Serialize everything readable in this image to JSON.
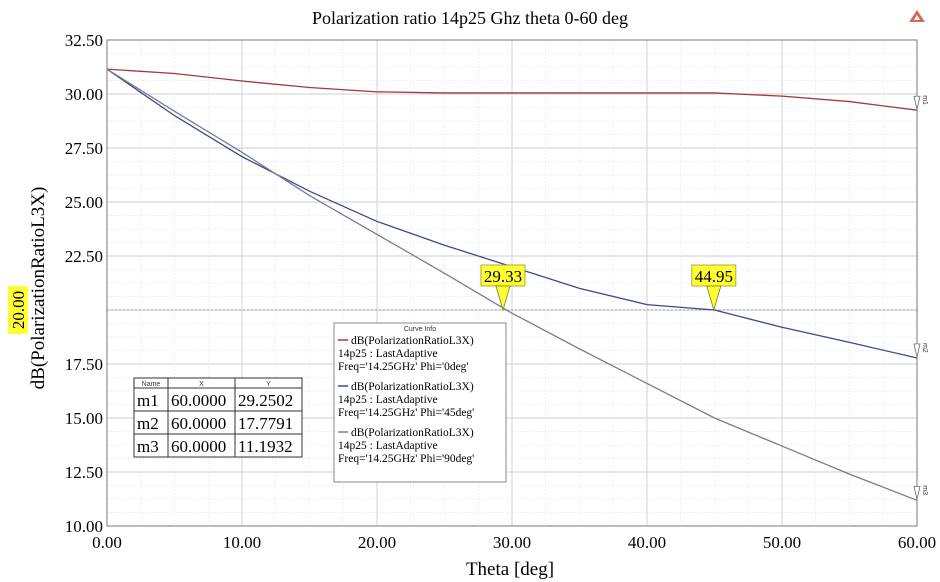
{
  "chart_data": {
    "type": "line",
    "title": "Polarization ratio 14p25 Ghz theta 0-60 deg",
    "xlabel": "Theta [deg]",
    "ylabel": "dB(PolarizationRatioL3X)",
    "xlim": [
      0,
      60
    ],
    "ylim": [
      10,
      32.5
    ],
    "x_ticks": [
      "0.00",
      "10.00",
      "20.00",
      "30.00",
      "40.00",
      "50.00",
      "60.00"
    ],
    "y_ticks": [
      "10.00",
      "12.50",
      "15.00",
      "17.50",
      "20.00",
      "22.50",
      "25.00",
      "27.50",
      "30.00",
      "32.50"
    ],
    "grid": true,
    "colors": {
      "grid": "#cfcfcf",
      "marker_fill": "#ffff33",
      "highlight": "#ffff33"
    },
    "series": [
      {
        "name": "dB(PolarizationRatioL3X)",
        "setup": "14p25 : LastAdaptive",
        "params": "Freq='14.25GHz' Phi='0deg'",
        "color": "#a23a3a",
        "x": [
          0,
          5,
          10,
          15,
          20,
          25,
          30,
          35,
          40,
          45,
          50,
          55,
          60
        ],
        "y": [
          31.15,
          30.95,
          30.6,
          30.3,
          30.1,
          30.05,
          30.05,
          30.05,
          30.05,
          30.05,
          29.9,
          29.65,
          29.25
        ]
      },
      {
        "name": "dB(PolarizationRatioL3X)",
        "setup": "14p25 : LastAdaptive",
        "params": "Freq='14.25GHz' Phi='45deg'",
        "color": "#3c4a8c",
        "x": [
          0,
          5,
          10,
          15,
          20,
          25,
          30,
          35,
          40,
          45,
          50,
          55,
          60
        ],
        "y": [
          31.15,
          29.0,
          27.1,
          25.5,
          24.1,
          23.0,
          22.0,
          21.0,
          20.25,
          20.0,
          19.2,
          18.5,
          17.78
        ]
      },
      {
        "name": "dB(PolarizationRatioL3X)",
        "setup": "14p25 : LastAdaptive",
        "params": "Freq='14.25GHz' Phi='90deg'",
        "color": "#7a7a9a",
        "x": [
          0,
          5,
          10,
          15,
          20,
          25,
          30,
          35,
          40,
          45,
          50,
          55,
          60
        ],
        "y": [
          31.15,
          29.2,
          27.3,
          25.3,
          23.5,
          21.7,
          19.85,
          18.2,
          16.6,
          15.0,
          13.7,
          12.4,
          11.19
        ]
      }
    ],
    "reference_line": {
      "y": 20,
      "label": "20.00"
    },
    "markers": [
      {
        "label": "29.33",
        "x": 29.33,
        "y": 20
      },
      {
        "label": "44.95",
        "x": 44.95,
        "y": 20
      }
    ],
    "curve_info_title": "Curve Info",
    "marker_table": {
      "headers": [
        "Name",
        "X",
        "Y"
      ],
      "rows": [
        [
          "m1",
          "60.0000",
          "29.2502"
        ],
        [
          "m2",
          "60.0000",
          "17.7791"
        ],
        [
          "m3",
          "60.0000",
          "11.1932"
        ]
      ]
    },
    "end_flags": [
      {
        "label": "m1",
        "x": 60,
        "y": 29.25
      },
      {
        "label": "m2",
        "x": 60,
        "y": 17.78
      },
      {
        "label": "m3",
        "x": 60,
        "y": 11.19
      }
    ]
  }
}
